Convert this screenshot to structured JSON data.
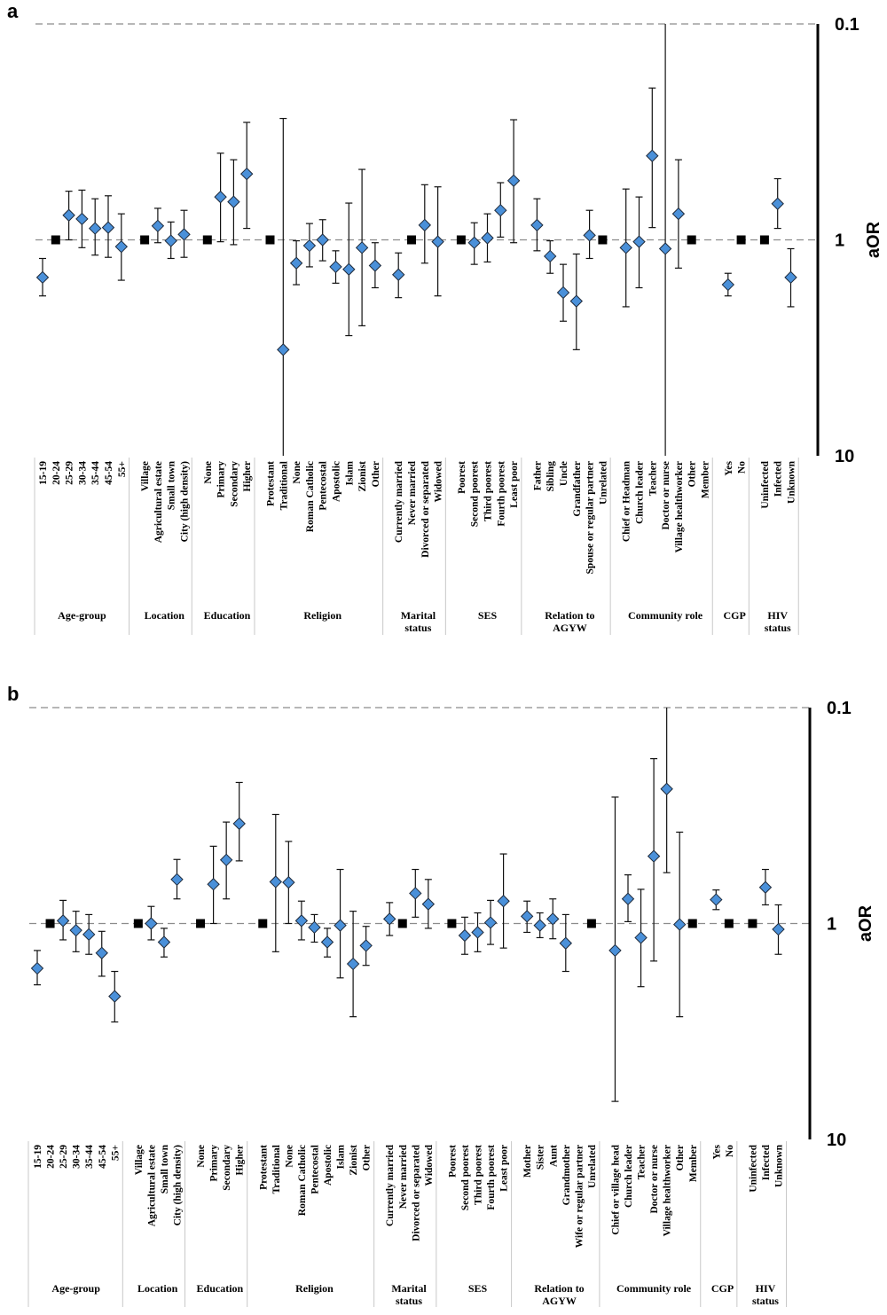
{
  "chart_data": [
    {
      "type": "scatter",
      "panel": "a",
      "ylabel": "aOR",
      "yscale": "log",
      "ylim": [
        0.1,
        10
      ],
      "yticks": [
        "0.1",
        "1",
        "10"
      ],
      "reference_line": 1,
      "groups": [
        {
          "label": [
            "Age-group"
          ],
          "cats": [
            {
              "label": "15-19",
              "v": 0.67,
              "lo": 0.55,
              "hi": 0.82
            },
            {
              "label": "20-24",
              "ref": true
            },
            {
              "label": "25-29",
              "v": 1.3,
              "lo": 1.0,
              "hi": 1.68
            },
            {
              "label": "30-34",
              "v": 1.25,
              "lo": 0.92,
              "hi": 1.7
            },
            {
              "label": "35-44",
              "v": 1.13,
              "lo": 0.85,
              "hi": 1.55
            },
            {
              "label": "45-54",
              "v": 1.14,
              "lo": 0.83,
              "hi": 1.6
            },
            {
              "label": "55+",
              "v": 0.93,
              "lo": 0.65,
              "hi": 1.32
            }
          ]
        },
        {
          "label": [
            "Location"
          ],
          "cats": [
            {
              "label": "Village",
              "ref": true
            },
            {
              "label": "Agricultural estate",
              "v": 1.16,
              "lo": 0.97,
              "hi": 1.4
            },
            {
              "label": "Small town",
              "v": 0.99,
              "lo": 0.82,
              "hi": 1.21
            },
            {
              "label": "City (high density)",
              "v": 1.06,
              "lo": 0.83,
              "hi": 1.37
            }
          ]
        },
        {
          "label": [
            "Education"
          ],
          "cats": [
            {
              "label": "None",
              "ref": true
            },
            {
              "label": "Primary",
              "v": 1.58,
              "lo": 0.98,
              "hi": 2.52
            },
            {
              "label": "Secondary",
              "v": 1.5,
              "lo": 0.95,
              "hi": 2.35
            },
            {
              "label": "Higher",
              "v": 2.02,
              "lo": 1.13,
              "hi": 3.5
            }
          ]
        },
        {
          "label": [
            "Religion"
          ],
          "cats": [
            {
              "label": "Protestant",
              "ref": true
            },
            {
              "label": "Traditional",
              "v": 0.31,
              "lo": 0.1,
              "hi": 3.65
            },
            {
              "label": "None",
              "v": 0.78,
              "lo": 0.62,
              "hi": 0.99
            },
            {
              "label": "Roman Catholic",
              "v": 0.94,
              "lo": 0.75,
              "hi": 1.19
            },
            {
              "label": "Pentecostal",
              "v": 1.0,
              "lo": 0.8,
              "hi": 1.24
            },
            {
              "label": "Apostolic",
              "v": 0.75,
              "lo": 0.63,
              "hi": 0.89
            },
            {
              "label": "Islam",
              "v": 0.73,
              "lo": 0.36,
              "hi": 1.48
            },
            {
              "label": "Zionist",
              "v": 0.92,
              "lo": 0.4,
              "hi": 2.12
            },
            {
              "label": "Other",
              "v": 0.76,
              "lo": 0.6,
              "hi": 0.97
            }
          ]
        },
        {
          "label": [
            "Marital",
            "status"
          ],
          "cats": [
            {
              "label": "Currently married",
              "v": 0.69,
              "lo": 0.54,
              "hi": 0.87
            },
            {
              "label": "Never married",
              "ref": true
            },
            {
              "label": "Divorced or separated",
              "v": 1.17,
              "lo": 0.78,
              "hi": 1.8
            },
            {
              "label": "Widowed",
              "v": 0.98,
              "lo": 0.55,
              "hi": 1.76
            }
          ]
        },
        {
          "label": [
            "SES"
          ],
          "cats": [
            {
              "label": "Poorest",
              "ref": true
            },
            {
              "label": "Second poorest",
              "v": 0.97,
              "lo": 0.77,
              "hi": 1.2
            },
            {
              "label": "Third poorest",
              "v": 1.02,
              "lo": 0.79,
              "hi": 1.32
            },
            {
              "label": "Fourth poorest",
              "v": 1.37,
              "lo": 1.03,
              "hi": 1.84
            },
            {
              "label": "Least poor",
              "v": 1.88,
              "lo": 0.97,
              "hi": 3.6
            }
          ]
        },
        {
          "label": [
            "Relation to",
            "AGYW"
          ],
          "cats": [
            {
              "label": "Father",
              "v": 1.17,
              "lo": 0.89,
              "hi": 1.55
            },
            {
              "label": "Sibling",
              "v": 0.84,
              "lo": 0.7,
              "hi": 0.99
            },
            {
              "label": "Uncle",
              "v": 0.57,
              "lo": 0.42,
              "hi": 0.77
            },
            {
              "label": "Grandfather",
              "v": 0.52,
              "lo": 0.31,
              "hi": 0.86
            },
            {
              "label": "Spouse or regular partner",
              "v": 1.05,
              "lo": 0.82,
              "hi": 1.37
            },
            {
              "label": "Unrelated",
              "ref": true
            }
          ]
        },
        {
          "label": [
            "Community role"
          ],
          "cats": [
            {
              "label": "Chief or Headman",
              "v": 0.92,
              "lo": 0.49,
              "hi": 1.72
            },
            {
              "label": "Church leader",
              "v": 0.98,
              "lo": 0.6,
              "hi": 1.58
            },
            {
              "label": "Teacher",
              "v": 2.45,
              "lo": 1.14,
              "hi": 5.05
            },
            {
              "label": "Doctor or nurse",
              "v": 0.91,
              "lo": 0.1,
              "hi": 10
            },
            {
              "label": "Village healthworker",
              "v": 1.32,
              "lo": 0.74,
              "hi": 2.35
            },
            {
              "label": "Other",
              "ref": true
            },
            {
              "label": "Member"
            }
          ]
        },
        {
          "label": [
            "CGP"
          ],
          "cats": [
            {
              "label": "Yes",
              "v": 0.62,
              "lo": 0.55,
              "hi": 0.7
            },
            {
              "label": "No",
              "ref": true
            }
          ]
        },
        {
          "label": [
            "HIV",
            "status"
          ],
          "cats": [
            {
              "label": "Uninfected",
              "ref": true
            },
            {
              "label": "Infected",
              "v": 1.47,
              "lo": 1.13,
              "hi": 1.92
            },
            {
              "label": "Unknown",
              "v": 0.67,
              "lo": 0.49,
              "hi": 0.91
            }
          ]
        }
      ]
    },
    {
      "type": "scatter",
      "panel": "b",
      "ylabel": "aOR",
      "yscale": "log",
      "ylim": [
        0.1,
        10
      ],
      "yticks": [
        "0.1",
        "1",
        "10"
      ],
      "reference_line": 1,
      "groups": [
        {
          "label": [
            "Age-group"
          ],
          "cats": [
            {
              "label": "15-19",
              "v": 0.62,
              "lo": 0.52,
              "hi": 0.75
            },
            {
              "label": "20-24",
              "ref": true
            },
            {
              "label": "25-29",
              "v": 1.03,
              "lo": 0.84,
              "hi": 1.28
            },
            {
              "label": "30-34",
              "v": 0.93,
              "lo": 0.74,
              "hi": 1.14
            },
            {
              "label": "35-44",
              "v": 0.89,
              "lo": 0.72,
              "hi": 1.1
            },
            {
              "label": "45-54",
              "v": 0.73,
              "lo": 0.57,
              "hi": 0.92
            },
            {
              "label": "55+",
              "v": 0.46,
              "lo": 0.35,
              "hi": 0.6
            }
          ]
        },
        {
          "label": [
            "Location"
          ],
          "cats": [
            {
              "label": "Village",
              "ref": true
            },
            {
              "label": "Agricultural estate",
              "v": 1.0,
              "lo": 0.84,
              "hi": 1.2
            },
            {
              "label": "Small town",
              "v": 0.82,
              "lo": 0.7,
              "hi": 0.95
            },
            {
              "label": "City (high density)",
              "v": 1.6,
              "lo": 1.3,
              "hi": 1.98
            }
          ]
        },
        {
          "label": [
            "Education"
          ],
          "cats": [
            {
              "label": "None",
              "ref": true
            },
            {
              "label": "Primary",
              "v": 1.52,
              "lo": 1.0,
              "hi": 2.28
            },
            {
              "label": "Secondary",
              "v": 1.97,
              "lo": 1.3,
              "hi": 2.95
            },
            {
              "label": "Higher",
              "v": 2.9,
              "lo": 1.95,
              "hi": 4.5
            }
          ]
        },
        {
          "label": [
            "Religion"
          ],
          "cats": [
            {
              "label": "Protestant",
              "ref": true
            },
            {
              "label": "Traditional",
              "v": 1.56,
              "lo": 0.74,
              "hi": 3.2
            },
            {
              "label": "None",
              "v": 1.55,
              "lo": 1.0,
              "hi": 2.4
            },
            {
              "label": "Roman Catholic",
              "v": 1.03,
              "lo": 0.84,
              "hi": 1.27
            },
            {
              "label": "Pentecostal",
              "v": 0.96,
              "lo": 0.82,
              "hi": 1.1
            },
            {
              "label": "Apostolic",
              "v": 0.82,
              "lo": 0.7,
              "hi": 0.95
            },
            {
              "label": "Islam",
              "v": 0.98,
              "lo": 0.56,
              "hi": 1.78
            },
            {
              "label": "Zionist",
              "v": 0.65,
              "lo": 0.37,
              "hi": 1.14
            },
            {
              "label": "Other",
              "v": 0.79,
              "lo": 0.64,
              "hi": 0.97
            }
          ]
        },
        {
          "label": [
            "Marital",
            "status"
          ],
          "cats": [
            {
              "label": "Currently married",
              "v": 1.05,
              "lo": 0.88,
              "hi": 1.25
            },
            {
              "label": "Never married",
              "ref": true
            },
            {
              "label": "Divorced or separated",
              "v": 1.38,
              "lo": 1.07,
              "hi": 1.78
            },
            {
              "label": "Widowed",
              "v": 1.23,
              "lo": 0.95,
              "hi": 1.6
            }
          ]
        },
        {
          "label": [
            "SES"
          ],
          "cats": [
            {
              "label": "Poorest",
              "ref": true
            },
            {
              "label": "Second poorest",
              "v": 0.88,
              "lo": 0.72,
              "hi": 1.07
            },
            {
              "label": "Third poorest",
              "v": 0.91,
              "lo": 0.74,
              "hi": 1.12
            },
            {
              "label": "Fourth poorest",
              "v": 1.01,
              "lo": 0.8,
              "hi": 1.28
            },
            {
              "label": "Least poor",
              "v": 1.27,
              "lo": 0.77,
              "hi": 2.1
            }
          ]
        },
        {
          "label": [
            "Relation to",
            "AGYW"
          ],
          "cats": [
            {
              "label": "Mother",
              "v": 1.08,
              "lo": 0.91,
              "hi": 1.27
            },
            {
              "label": "Sister",
              "v": 0.98,
              "lo": 0.86,
              "hi": 1.12
            },
            {
              "label": "Aunt",
              "v": 1.05,
              "lo": 0.85,
              "hi": 1.3
            },
            {
              "label": "Grandmother",
              "v": 0.81,
              "lo": 0.6,
              "hi": 1.1
            },
            {
              "label": "Wife or regular partner"
            },
            {
              "label": "Unrelated",
              "ref": true
            }
          ]
        },
        {
          "label": [
            "Community role"
          ],
          "cats": [
            {
              "label": "Chief or village head",
              "v": 0.75,
              "lo": 0.15,
              "hi": 3.85
            },
            {
              "label": "Church leader",
              "v": 1.3,
              "lo": 1.02,
              "hi": 1.68
            },
            {
              "label": "Teacher",
              "v": 0.86,
              "lo": 0.51,
              "hi": 1.44
            },
            {
              "label": "Doctor or nurse",
              "v": 2.05,
              "lo": 0.67,
              "hi": 5.8
            },
            {
              "label": "Village healthworker",
              "v": 4.2,
              "lo": 1.72,
              "hi": 10
            },
            {
              "label": "Other",
              "v": 0.99,
              "lo": 0.37,
              "hi": 2.65
            },
            {
              "label": "Member",
              "ref": true
            }
          ]
        },
        {
          "label": [
            "CGP"
          ],
          "cats": [
            {
              "label": "Yes",
              "v": 1.29,
              "lo": 1.16,
              "hi": 1.43
            },
            {
              "label": "No",
              "ref": true
            }
          ]
        },
        {
          "label": [
            "HIV",
            "status"
          ],
          "cats": [
            {
              "label": "Uninfected",
              "ref": true
            },
            {
              "label": "Infected",
              "v": 1.47,
              "lo": 1.22,
              "hi": 1.78
            },
            {
              "label": "Unknown",
              "v": 0.94,
              "lo": 0.72,
              "hi": 1.22
            }
          ]
        }
      ]
    }
  ],
  "colors": {
    "marker_fill": "#4a90d9",
    "marker_stroke": "#1f2a3a",
    "reference_marker": "#000000",
    "dashed_line": "#8c8c8c",
    "separator": "#c8c8c8",
    "axis": "#000000"
  }
}
